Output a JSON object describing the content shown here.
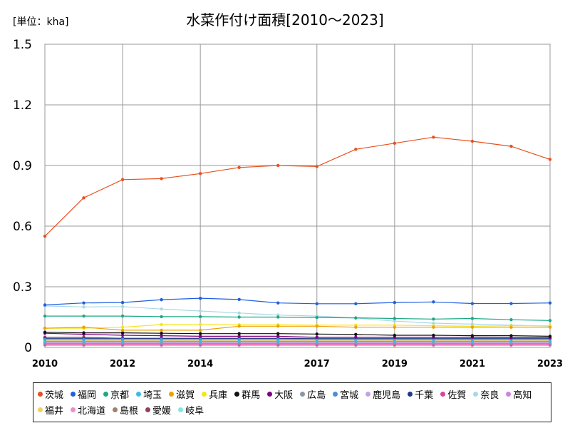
{
  "chart_data": {
    "type": "line",
    "title": "水菜作付け面積[2010～2023]",
    "unit_label": "[単位：kha]",
    "x": [
      2010,
      2011,
      2012,
      2013,
      2014,
      2015,
      2016,
      2017,
      2018,
      2019,
      2020,
      2021,
      2022,
      2023
    ],
    "x_tick_labels": [
      "2010",
      "2012",
      "2014",
      "2017",
      "2019",
      "2021",
      "2023"
    ],
    "y_tick_labels": [
      "0",
      "0.3",
      "0.6",
      "0.9",
      "1.2",
      "1.5"
    ],
    "ylim": [
      0,
      1.5
    ],
    "grid": true,
    "legend_position": "bottom",
    "series": [
      {
        "name": "茨城",
        "color": "#e8501e",
        "values": [
          0.55,
          0.74,
          0.83,
          0.835,
          0.86,
          0.89,
          0.9,
          0.895,
          0.98,
          1.01,
          1.04,
          1.02,
          0.995,
          0.93
        ]
      },
      {
        "name": "福岡",
        "color": "#1f5fe0",
        "values": [
          0.21,
          0.22,
          0.222,
          0.236,
          0.243,
          0.237,
          0.22,
          0.216,
          0.216,
          0.222,
          0.225,
          0.217,
          0.217,
          0.22
        ]
      },
      {
        "name": "京都",
        "color": "#1ea882",
        "values": [
          0.155,
          0.155,
          0.155,
          0.152,
          0.152,
          0.15,
          0.15,
          0.148,
          0.146,
          0.143,
          0.14,
          0.143,
          0.137,
          0.133
        ]
      },
      {
        "name": "埼玉",
        "color": "#40b8e8",
        "values": [
          0.03,
          0.03,
          0.03,
          0.03,
          0.03,
          0.03,
          0.03,
          0.03,
          0.03,
          0.03,
          0.03,
          0.03,
          0.03,
          0.03
        ]
      },
      {
        "name": "滋賀",
        "color": "#f0a000",
        "values": [
          0.095,
          0.1,
          0.085,
          0.085,
          0.085,
          0.105,
          0.105,
          0.105,
          0.1,
          0.1,
          0.1,
          0.1,
          0.1,
          0.1
        ]
      },
      {
        "name": "兵庫",
        "color": "#f5e61a",
        "values": [
          0.095,
          0.095,
          0.1,
          0.113,
          0.113,
          0.112,
          0.112,
          0.11,
          0.11,
          0.11,
          0.107,
          0.105,
          0.107,
          0.107
        ]
      },
      {
        "name": "群馬",
        "color": "#111111",
        "values": [
          0.075,
          0.072,
          0.072,
          0.07,
          0.068,
          0.068,
          0.068,
          0.066,
          0.064,
          0.06,
          0.06,
          0.058,
          0.058,
          0.055
        ]
      },
      {
        "name": "大阪",
        "color": "#800080",
        "values": [
          0.07,
          0.065,
          0.06,
          0.058,
          0.055,
          0.055,
          0.055,
          0.05,
          0.05,
          0.05,
          0.05,
          0.05,
          0.048,
          0.048
        ]
      },
      {
        "name": "広島",
        "color": "#8a97a8",
        "values": [
          0.02,
          0.02,
          0.02,
          0.02,
          0.02,
          0.02,
          0.02,
          0.02,
          0.02,
          0.02,
          0.02,
          0.02,
          0.02,
          0.02
        ]
      },
      {
        "name": "宮城",
        "color": "#4d8fd6",
        "values": [
          0.04,
          0.04,
          0.04,
          0.04,
          0.04,
          0.04,
          0.04,
          0.04,
          0.04,
          0.04,
          0.04,
          0.04,
          0.04,
          0.04
        ]
      },
      {
        "name": "鹿児島",
        "color": "#c8a0e8",
        "values": [
          0.025,
          0.025,
          0.025,
          0.025,
          0.025,
          0.025,
          0.025,
          0.025,
          0.025,
          0.025,
          0.025,
          0.025,
          0.025,
          0.025
        ]
      },
      {
        "name": "千葉",
        "color": "#1a3a8a",
        "values": [
          0.045,
          0.045,
          0.045,
          0.045,
          0.045,
          0.045,
          0.045,
          0.045,
          0.045,
          0.045,
          0.045,
          0.045,
          0.045,
          0.045
        ]
      },
      {
        "name": "佐賀",
        "color": "#e040a0",
        "values": [
          0.015,
          0.015,
          0.015,
          0.015,
          0.015,
          0.015,
          0.015,
          0.015,
          0.015,
          0.015,
          0.015,
          0.015,
          0.015,
          0.015
        ]
      },
      {
        "name": "奈良",
        "color": "#a8d8e8",
        "values": [
          0.205,
          0.2,
          0.202,
          0.19,
          0.18,
          0.17,
          0.16,
          0.155,
          0.145,
          0.13,
          0.12,
          0.115,
          0.11,
          0.105
        ]
      },
      {
        "name": "高知",
        "color": "#d080e8",
        "values": [
          0.02,
          0.02,
          0.02,
          0.02,
          0.02,
          0.02,
          0.02,
          0.02,
          0.02,
          0.02,
          0.02,
          0.02,
          0.02,
          0.02
        ]
      },
      {
        "name": "福井",
        "color": "#f5d060",
        "values": [
          0.035,
          0.035,
          0.035,
          0.035,
          0.035,
          0.035,
          0.035,
          0.035,
          0.035,
          0.035,
          0.035,
          0.035,
          0.035,
          0.035
        ]
      },
      {
        "name": "北海道",
        "color": "#e890c8",
        "values": [
          0.01,
          0.01,
          0.01,
          0.01,
          0.01,
          0.01,
          0.01,
          0.01,
          0.01,
          0.01,
          0.01,
          0.01,
          0.01,
          0.01
        ]
      },
      {
        "name": "島根",
        "color": "#a08070",
        "values": [
          0.03,
          0.03,
          0.03,
          0.03,
          0.03,
          0.03,
          0.03,
          0.03,
          0.03,
          0.03,
          0.03,
          0.03,
          0.03,
          0.03
        ]
      },
      {
        "name": "愛媛",
        "color": "#904060",
        "values": [
          0.05,
          0.05,
          0.045,
          0.045,
          0.045,
          0.045,
          0.045,
          0.04,
          0.04,
          0.04,
          0.04,
          0.04,
          0.04,
          0.04
        ]
      },
      {
        "name": "岐阜",
        "color": "#80e8e0",
        "values": [
          0.025,
          0.025,
          0.025,
          0.025,
          0.025,
          0.025,
          0.025,
          0.025,
          0.025,
          0.025,
          0.025,
          0.025,
          0.025,
          0.025
        ]
      }
    ]
  }
}
